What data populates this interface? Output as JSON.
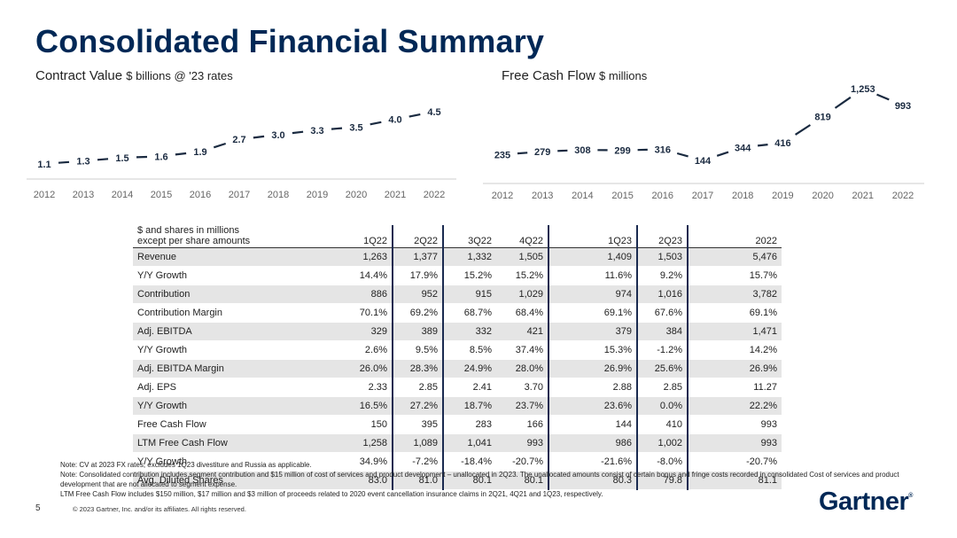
{
  "page": {
    "title": "Consolidated Financial Summary",
    "page_number": "5",
    "copyright": "© 2023 Gartner, Inc. and/or its affiliates. All rights reserved.",
    "logo": "Gartner",
    "logo_mark": "®"
  },
  "chart_data": [
    {
      "type": "line",
      "title": "Contract Value",
      "unit": "$ billions @ '23 rates",
      "categories": [
        "2012",
        "2013",
        "2014",
        "2015",
        "2016",
        "2017",
        "2018",
        "2019",
        "2020",
        "2021",
        "2022"
      ],
      "values": [
        1.1,
        1.3,
        1.5,
        1.6,
        1.9,
        2.7,
        3.0,
        3.3,
        3.5,
        4.0,
        4.5
      ],
      "labels": [
        "1.1",
        "1.3",
        "1.5",
        "1.6",
        "1.9",
        "2.7",
        "3.0",
        "3.3",
        "3.5",
        "4.0",
        "4.5"
      ],
      "ylim": [
        1.1,
        4.5
      ],
      "grid": false,
      "line_color": "#1a2a40"
    },
    {
      "type": "line",
      "title": "Free Cash Flow",
      "unit": "$ millions",
      "categories": [
        "2012",
        "2013",
        "2014",
        "2015",
        "2016",
        "2017",
        "2018",
        "2019",
        "2020",
        "2021",
        "2022"
      ],
      "values": [
        235,
        279,
        308,
        299,
        316,
        144,
        344,
        416,
        819,
        1253,
        993
      ],
      "labels": [
        "235",
        "279",
        "308",
        "299",
        "316",
        "144",
        "344",
        "416",
        "819",
        "1,253",
        "993"
      ],
      "ylim": [
        144,
        1253
      ],
      "grid": false,
      "line_color": "#1a2a40"
    }
  ],
  "table": {
    "header_label": "$ and shares in millions\nexcept per share amounts",
    "columns": [
      "1Q22",
      "2Q22",
      "3Q22",
      "4Q22",
      "1Q23",
      "2Q23",
      "2022"
    ],
    "rows": [
      {
        "label": "Revenue",
        "values": [
          "1,263",
          "1,377",
          "1,332",
          "1,505",
          "1,409",
          "1,503",
          "5,476"
        ]
      },
      {
        "label": "Y/Y Growth",
        "values": [
          "14.4%",
          "17.9%",
          "15.2%",
          "15.2%",
          "11.6%",
          "9.2%",
          "15.7%"
        ]
      },
      {
        "label": "Contribution",
        "values": [
          "886",
          "952",
          "915",
          "1,029",
          "974",
          "1,016",
          "3,782"
        ]
      },
      {
        "label": "Contribution Margin",
        "values": [
          "70.1%",
          "69.2%",
          "68.7%",
          "68.4%",
          "69.1%",
          "67.6%",
          "69.1%"
        ]
      },
      {
        "label": "Adj. EBITDA",
        "values": [
          "329",
          "389",
          "332",
          "421",
          "379",
          "384",
          "1,471"
        ]
      },
      {
        "label": "Y/Y Growth",
        "values": [
          "2.6%",
          "9.5%",
          "8.5%",
          "37.4%",
          "15.3%",
          "-1.2%",
          "14.2%"
        ]
      },
      {
        "label": "Adj. EBITDA Margin",
        "values": [
          "26.0%",
          "28.3%",
          "24.9%",
          "28.0%",
          "26.9%",
          "25.6%",
          "26.9%"
        ]
      },
      {
        "label": "Adj. EPS",
        "values": [
          "2.33",
          "2.85",
          "2.41",
          "3.70",
          "2.88",
          "2.85",
          "11.27"
        ]
      },
      {
        "label": "Y/Y Growth",
        "values": [
          "16.5%",
          "27.2%",
          "18.7%",
          "23.7%",
          "23.6%",
          "0.0%",
          "22.2%"
        ]
      },
      {
        "label": "Free Cash Flow",
        "values": [
          "150",
          "395",
          "283",
          "166",
          "144",
          "410",
          "993"
        ]
      },
      {
        "label": "LTM Free Cash Flow",
        "values": [
          "1,258",
          "1,089",
          "1,041",
          "993",
          "986",
          "1,002",
          "993"
        ]
      },
      {
        "label": "Y/Y Growth",
        "values": [
          "34.9%",
          "-7.2%",
          "-18.4%",
          "-20.7%",
          "-21.6%",
          "-8.0%",
          "-20.7%"
        ]
      },
      {
        "label": "Avg. Diluted Shares",
        "values": [
          "83.0",
          "81.0",
          "80.1",
          "80.1",
          "80.3",
          "79.8",
          "81.1"
        ]
      }
    ],
    "shade_color": "#e5e5e5"
  },
  "notes": [
    "Note: CV at 2023 FX rates; excludes 1Q23 divestiture and Russia as applicable.",
    "Note: Consolidated contribution includes segment contribution and $15 million of cost of services and product development – unallocated in 2Q23. The unallocated amounts consist of certain bonus and fringe costs recorded in consolidated Cost of services and product development that are not allocated to segment expense.",
    "LTM Free Cash Flow includes $150 million, $17 million and $3 million of proceeds related to 2020 event cancellation insurance claims in 2Q21, 4Q21 and 1Q23, respectively."
  ]
}
